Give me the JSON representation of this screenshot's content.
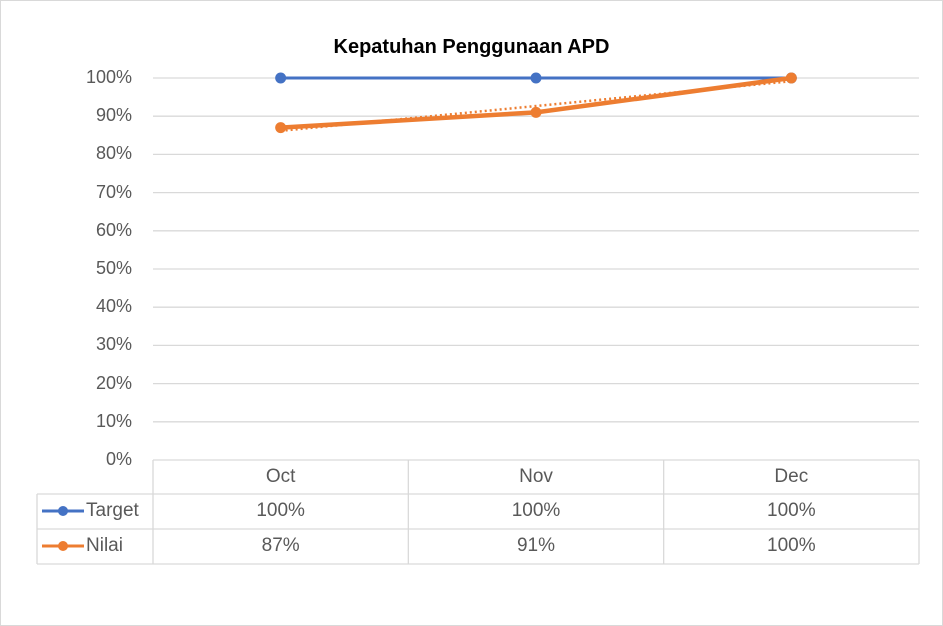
{
  "chart_data": {
    "type": "line",
    "title": "Kepatuhan Penggunaan APD",
    "categories": [
      "Oct",
      "Nov",
      "Dec"
    ],
    "series": [
      {
        "name": "Target",
        "values": [
          100,
          100,
          100
        ],
        "color": "#4472c4",
        "labels": [
          "100%",
          "100%",
          "100%"
        ]
      },
      {
        "name": "Nilai",
        "values": [
          87,
          91,
          100
        ],
        "color": "#ed7d31",
        "labels": [
          "87%",
          "91%",
          "100%"
        ]
      }
    ],
    "trendline": {
      "series": "Nilai",
      "style": "dotted",
      "type": "linear"
    },
    "yticks": [
      "100%",
      "90%",
      "80%",
      "70%",
      "60%",
      "50%",
      "40%",
      "30%",
      "20%",
      "10%",
      "0%"
    ],
    "ylim": [
      0,
      100
    ],
    "xlabel": "",
    "ylabel": "",
    "grid": true,
    "legend_position": "data-table"
  }
}
